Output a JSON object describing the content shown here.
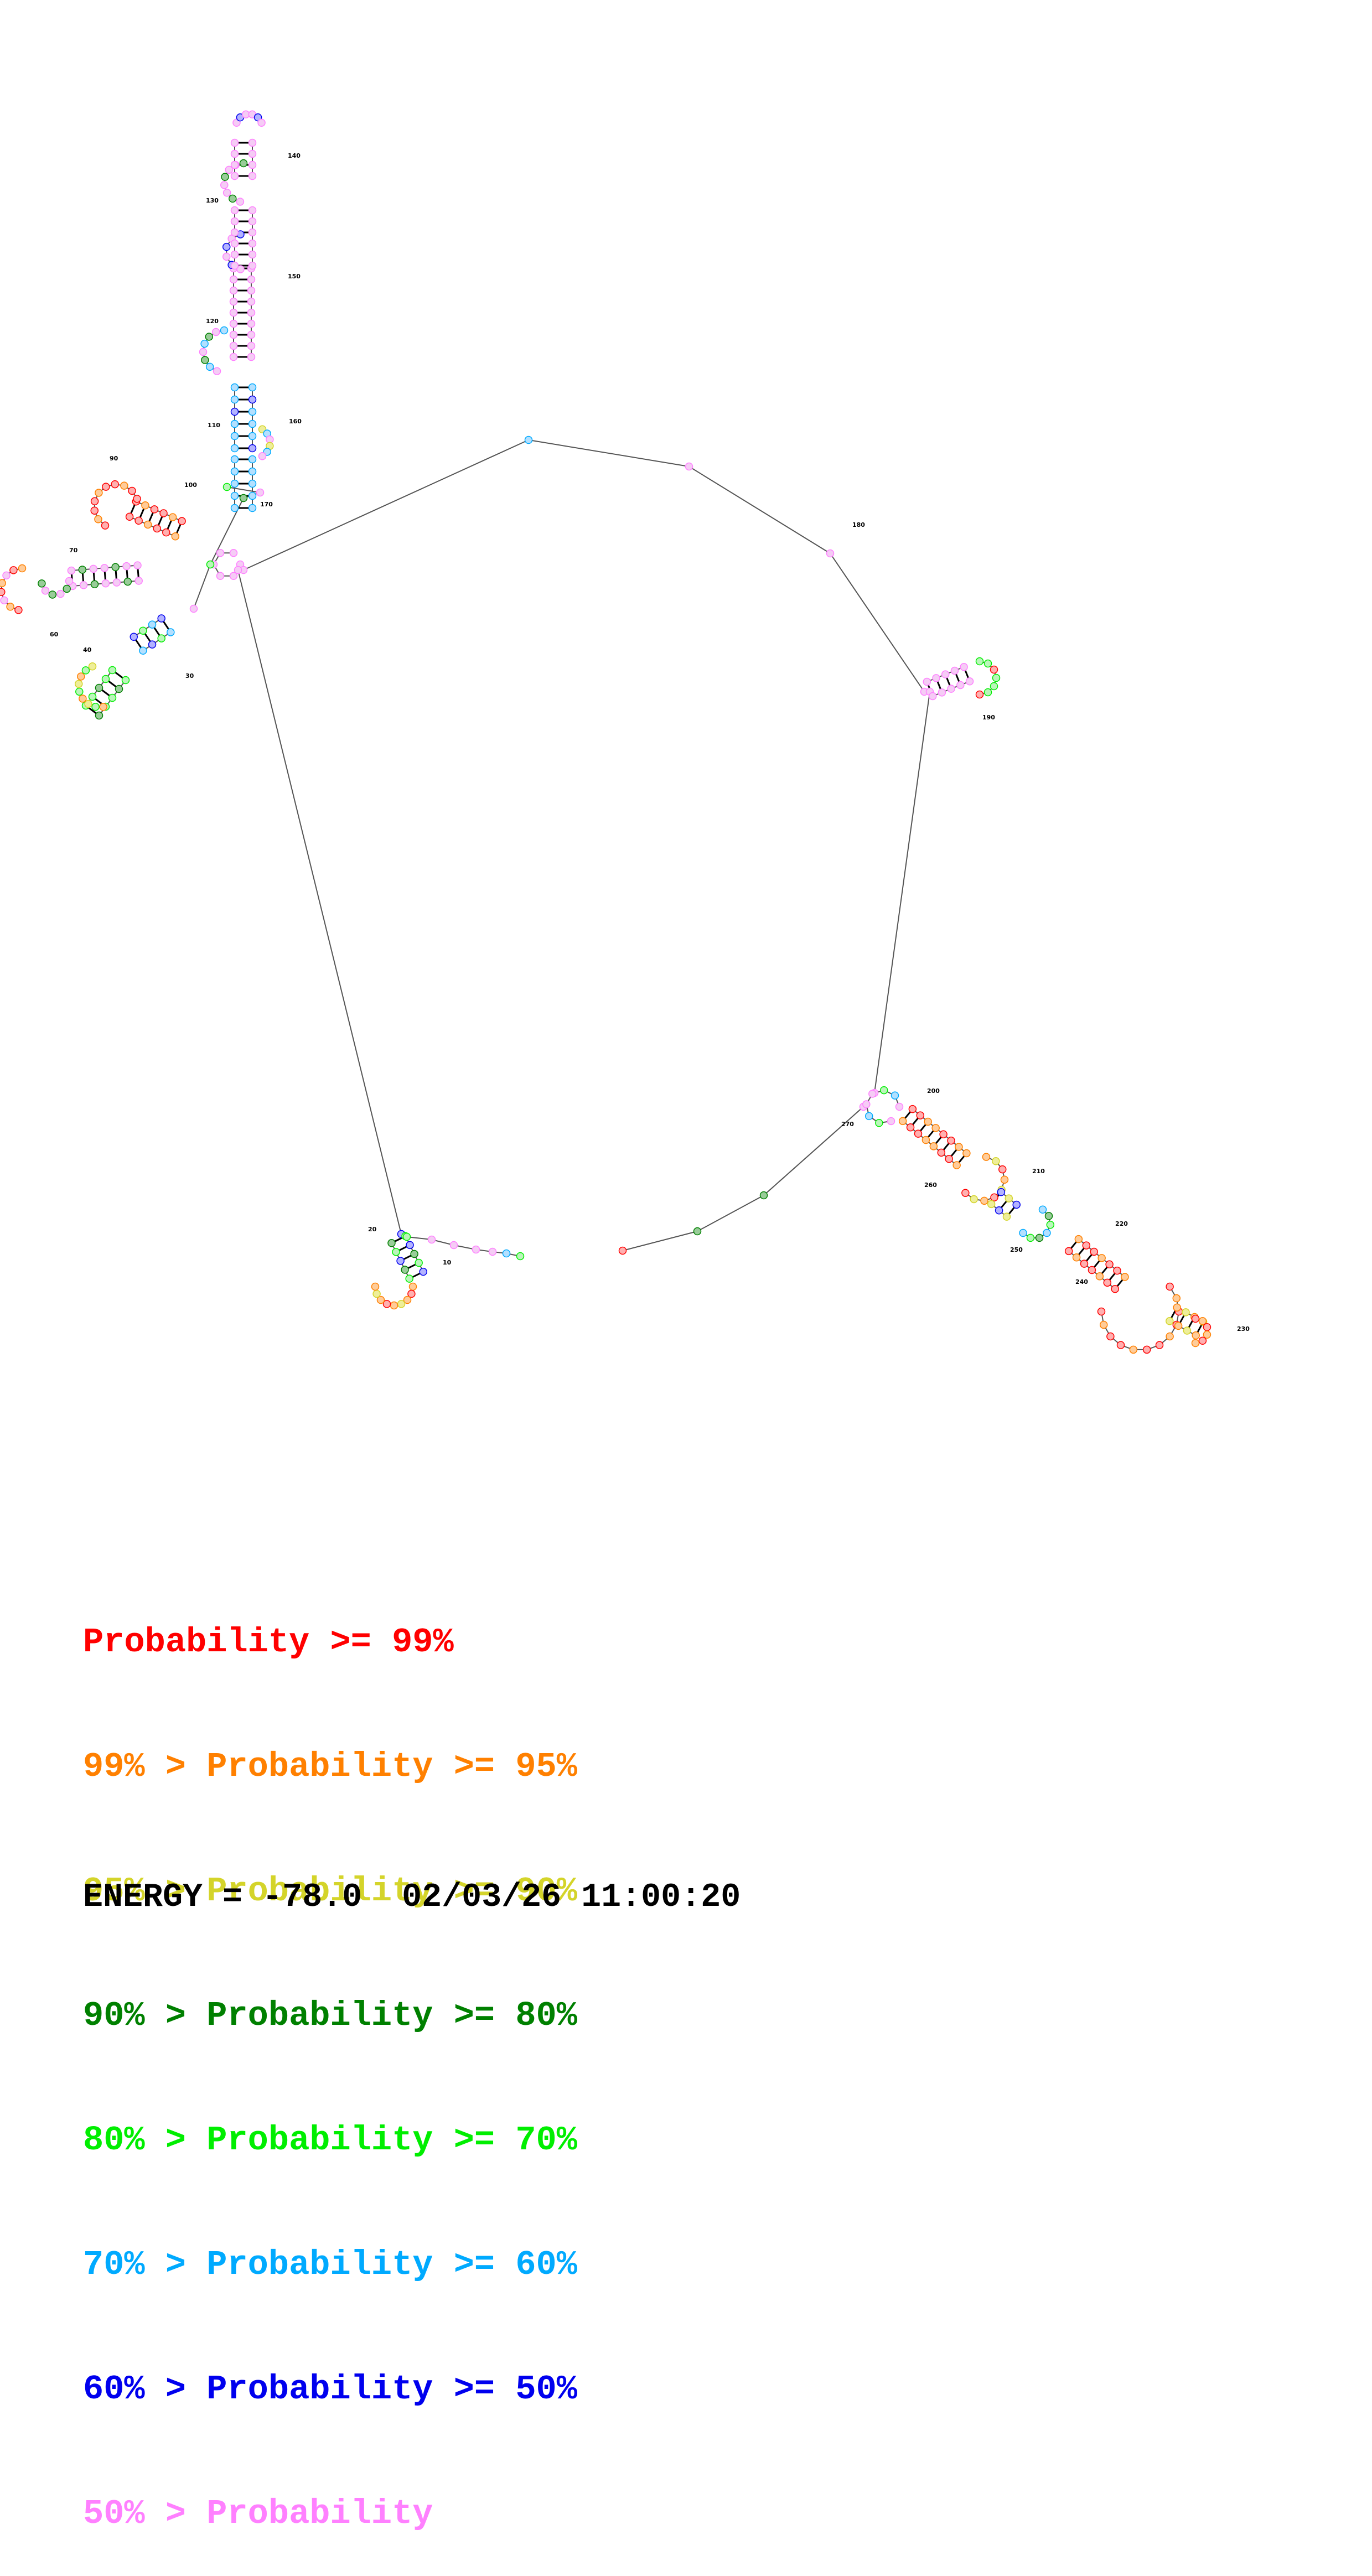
{
  "legend": [
    {
      "prefix": "",
      "label": "Probability >= 99%",
      "color": "#ff0000"
    },
    {
      "prefix": "99% > ",
      "label": "Probability >= 95%",
      "color": "#ff8000"
    },
    {
      "prefix": "95% > ",
      "label": "Probability >= 90%",
      "color": "#d4d42a"
    },
    {
      "prefix": "90% > ",
      "label": "Probability >= 80%",
      "color": "#008000"
    },
    {
      "prefix": "80% > ",
      "label": "Probability >= 70%",
      "color": "#00ee00"
    },
    {
      "prefix": "70% > ",
      "label": "Probability >= 60%",
      "color": "#00aaff"
    },
    {
      "prefix": "60% > ",
      "label": "Probability >= 50%",
      "color": "#0000ee"
    },
    {
      "prefix": "50% > ",
      "label": "Probability",
      "color": "#ff80ff"
    }
  ],
  "footer": {
    "energy": "ENERGY = -78.0",
    "timestamp": "02/03/26 11:00:20"
  },
  "nucleotide_labels": [
    "10",
    "20",
    "30",
    "40",
    "60",
    "70",
    "90",
    "100",
    "110",
    "120",
    "130",
    "140",
    "150",
    "160",
    "170",
    "180",
    "190",
    "200",
    "210",
    "220",
    "230",
    "240",
    "250",
    "260",
    "270"
  ]
}
